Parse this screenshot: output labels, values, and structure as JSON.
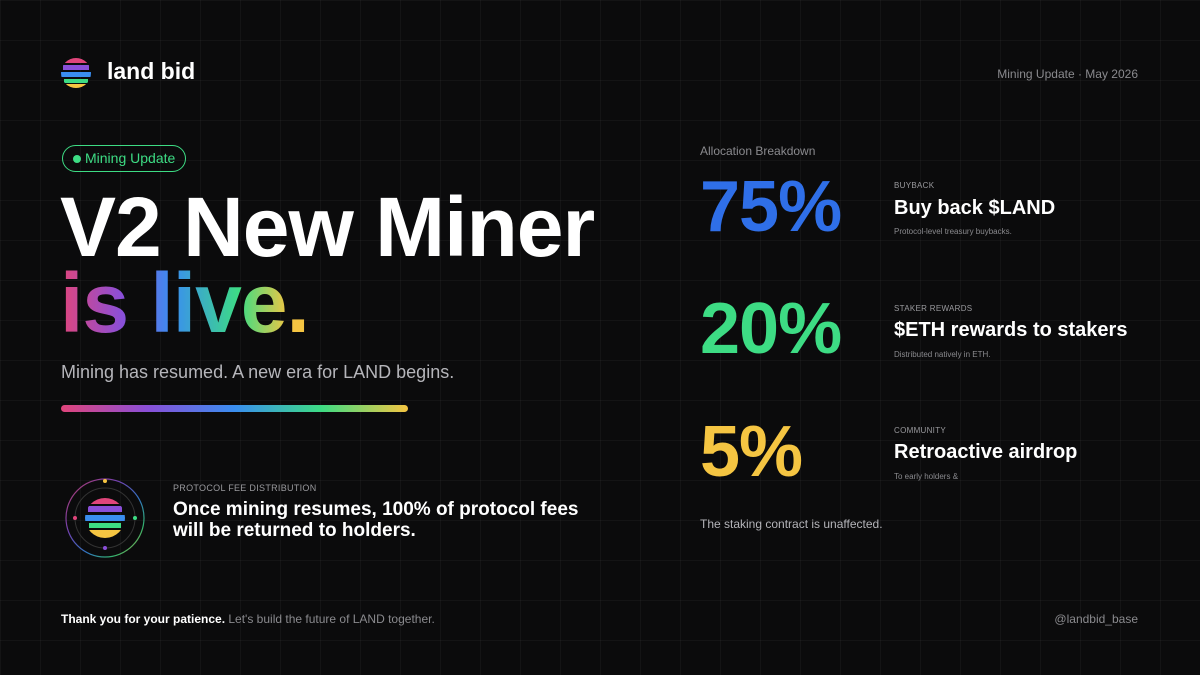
{
  "header": {
    "brand": "land bid",
    "meta": "Mining Update · May 2026"
  },
  "hero": {
    "badge": "Mining Update",
    "title_line1": "V2 New Miner",
    "title_line2": "is live.",
    "subtitle": "Mining has resumed. A new era for LAND begins."
  },
  "fee": {
    "label": "PROTOCOL FEE DISTRIBUTION",
    "text": "Once mining resumes, 100% of protocol fees will be returned to holders."
  },
  "allocation": {
    "heading": "Allocation Breakdown",
    "items": [
      {
        "percent": "75%",
        "label": "BUYBACK",
        "title": "Buy back $LAND",
        "description": "Protocol-level treasury buybacks."
      },
      {
        "percent": "20%",
        "label": "STAKER REWARDS",
        "title": "$ETH rewards to stakers",
        "description": "Distributed natively in ETH."
      },
      {
        "percent": "5%",
        "label": "COMMUNITY",
        "title": "Retroactive airdrop",
        "description": "To early holders &"
      }
    ],
    "note": "The staking contract is unaffected."
  },
  "footer": {
    "thanks": "Thank you for your patience.",
    "message": "Let's build the future of LAND together.",
    "handle": "@landbid_base"
  }
}
